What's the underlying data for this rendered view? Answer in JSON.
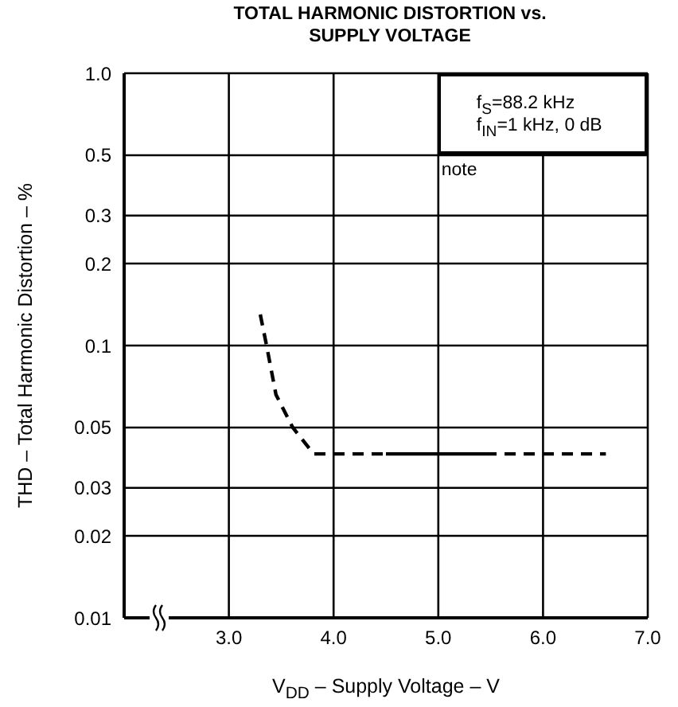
{
  "chart_data": {
    "type": "line",
    "title": "TOTAL HARMONIC DISTORTION vs. SUPPLY VOLTAGE",
    "xlabel": "V$_{DD}$ – Supply Voltage – V",
    "ylabel": "THD – Total Harmonic Distortion – %",
    "annotations": [
      "f$_{S}$=88.2 kHz",
      "f$_{IN}$=1 kHz, 0 dB",
      "note"
    ],
    "series": [
      {
        "color": "#000000",
        "line_style": "dashed",
        "x": [
          3.3,
          3.36,
          3.45,
          3.61,
          3.81,
          4.0,
          4.5
        ],
        "values": [
          0.13,
          0.1,
          0.066,
          0.05,
          0.04,
          0.04,
          0.04
        ]
      },
      {
        "color": "#000000",
        "line_style": "solid",
        "x": [
          4.5,
          5.45
        ],
        "values": [
          0.04,
          0.04
        ]
      },
      {
        "color": "#000000",
        "line_style": "dashed",
        "x": [
          5.45,
          6.6
        ],
        "values": [
          0.04,
          0.04
        ]
      }
    ],
    "log": "y",
    "xlim": [
      2.0,
      7.0
    ],
    "xticks": [
      {
        "value": 3,
        "label": "3.0"
      },
      {
        "value": 4,
        "label": "4.0"
      },
      {
        "value": 5,
        "label": "5.0"
      },
      {
        "value": 6,
        "label": "6.0"
      },
      {
        "value": 7,
        "label": "7.0"
      }
    ],
    "ylim": [
      0.01,
      1
    ],
    "yticks": [
      0.01,
      0.02,
      0.03,
      0.05,
      0.1,
      0.2,
      0.3,
      0.5,
      {
        "value": 1,
        "label": "1.0"
      }
    ],
    "grid": true
  }
}
